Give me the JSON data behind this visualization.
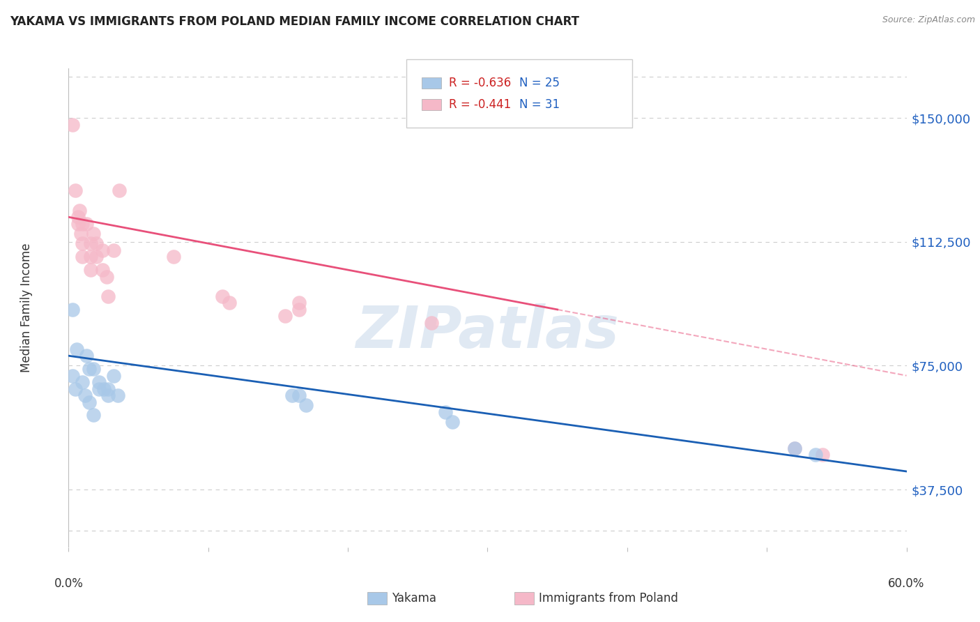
{
  "title": "YAKAMA VS IMMIGRANTS FROM POLAND MEDIAN FAMILY INCOME CORRELATION CHART",
  "source": "Source: ZipAtlas.com",
  "ylabel": "Median Family Income",
  "yticks": [
    37500,
    75000,
    112500,
    150000
  ],
  "ytick_labels": [
    "$37,500",
    "$75,000",
    "$112,500",
    "$150,000"
  ],
  "xlim": [
    0.0,
    0.6
  ],
  "ylim": [
    20000,
    165000
  ],
  "watermark": "ZIPatlas",
  "legend_blue_r": "-0.636",
  "legend_blue_n": "25",
  "legend_pink_r": "-0.441",
  "legend_pink_n": "31",
  "legend_blue_label": "Yakama",
  "legend_pink_label": "Immigrants from Poland",
  "blue_scatter_color": "#a8c8e8",
  "pink_scatter_color": "#f5b8c8",
  "trendline_blue": "#1a5fb4",
  "trendline_pink": "#e8507a",
  "background_color": "#ffffff",
  "grid_color": "#cccccc",
  "yakama_x": [
    0.003,
    0.006,
    0.003,
    0.005,
    0.01,
    0.012,
    0.015,
    0.013,
    0.015,
    0.018,
    0.022,
    0.022,
    0.018,
    0.025,
    0.028,
    0.028,
    0.032,
    0.035,
    0.16,
    0.165,
    0.17,
    0.27,
    0.275,
    0.52,
    0.535
  ],
  "yakama_y": [
    92000,
    80000,
    72000,
    68000,
    70000,
    66000,
    64000,
    78000,
    74000,
    74000,
    70000,
    68000,
    60000,
    68000,
    68000,
    66000,
    72000,
    66000,
    66000,
    66000,
    63000,
    61000,
    58000,
    50000,
    48000
  ],
  "poland_x": [
    0.003,
    0.005,
    0.007,
    0.007,
    0.008,
    0.009,
    0.01,
    0.01,
    0.01,
    0.013,
    0.016,
    0.016,
    0.016,
    0.018,
    0.02,
    0.02,
    0.024,
    0.024,
    0.027,
    0.028,
    0.032,
    0.036,
    0.075,
    0.11,
    0.115,
    0.155,
    0.165,
    0.165,
    0.26,
    0.52,
    0.54
  ],
  "poland_y": [
    148000,
    128000,
    120000,
    118000,
    122000,
    115000,
    118000,
    112000,
    108000,
    118000,
    112000,
    108000,
    104000,
    115000,
    108000,
    112000,
    110000,
    104000,
    102000,
    96000,
    110000,
    128000,
    108000,
    96000,
    94000,
    90000,
    94000,
    92000,
    88000,
    50000,
    48000
  ]
}
